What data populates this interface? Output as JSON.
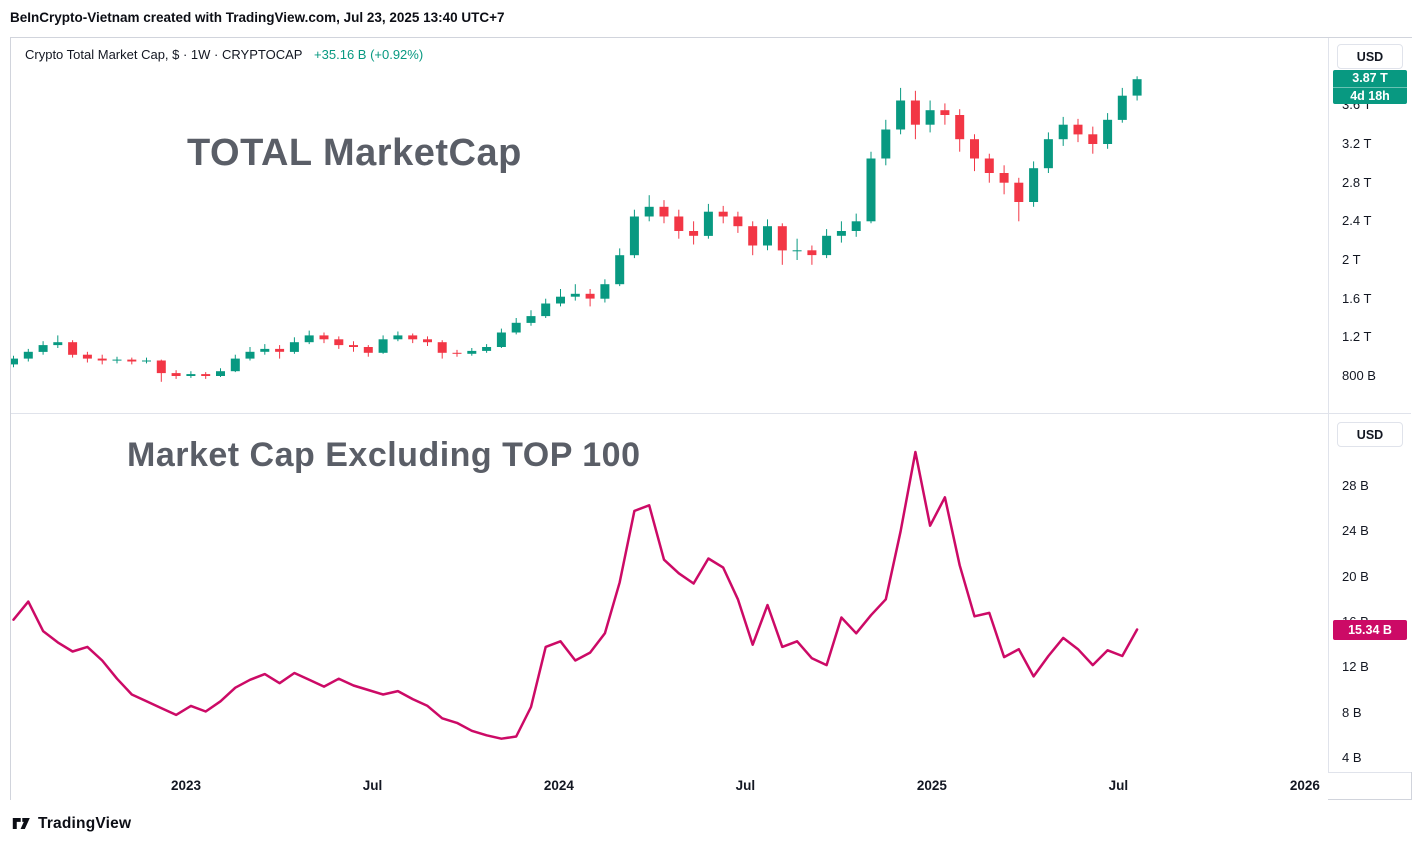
{
  "header": {
    "text": "BeInCrypto-Vietnam created with TradingView.com, Jul 23, 2025 13:40 UTC+7"
  },
  "footer": {
    "brand": "TradingView"
  },
  "colors": {
    "up": "#089981",
    "down": "#f23645",
    "line": "#cc0a66",
    "positive": "#089981",
    "text": "#131722",
    "border": "#e0e3eb",
    "watermark": "rgba(54,58,69,0.82)"
  },
  "panel1": {
    "legend": {
      "title": "Crypto Total Market Cap, $ · 1W · CRYPTOCAP",
      "change": "+35.16 B (+0.92%)"
    },
    "watermark": "TOTAL MarketCap",
    "currency_button": "USD",
    "price_badge": {
      "label": "3.87 T",
      "countdown": "4d 18h",
      "value": 3.87
    },
    "y_ticks": [
      {
        "value": 3.6,
        "label": "3.6 T"
      },
      {
        "value": 3.2,
        "label": "3.2 T"
      },
      {
        "value": 2.8,
        "label": "2.8 T"
      },
      {
        "value": 2.4,
        "label": "2.4 T"
      },
      {
        "value": 2.0,
        "label": "2 T"
      },
      {
        "value": 1.6,
        "label": "1.6 T"
      },
      {
        "value": 1.2,
        "label": "1.2 T"
      },
      {
        "value": 0.8,
        "label": "800 B"
      }
    ]
  },
  "panel2": {
    "watermark": "Market Cap Excluding TOP 100",
    "currency_button": "USD",
    "price_badge": {
      "label": "15.34 B",
      "value": 15.34
    },
    "y_ticks": [
      {
        "value": 28,
        "label": "28 B"
      },
      {
        "value": 24,
        "label": "24 B"
      },
      {
        "value": 20,
        "label": "20 B"
      },
      {
        "value": 16,
        "label": "16 B"
      },
      {
        "value": 12,
        "label": "12 B"
      },
      {
        "value": 8,
        "label": "8 B"
      },
      {
        "value": 4,
        "label": "4 B"
      }
    ]
  },
  "time_axis": {
    "labels": [
      {
        "label": "2023",
        "month": 6
      },
      {
        "label": "Jul",
        "month": 12
      },
      {
        "label": "2024",
        "month": 18
      },
      {
        "label": "Jul",
        "month": 24
      },
      {
        "label": "2025",
        "month": 30
      },
      {
        "label": "Jul",
        "month": 36
      },
      {
        "label": "2026",
        "month": 42
      }
    ]
  },
  "chart_data": [
    {
      "type": "candlestick",
      "title": "Crypto Total Market Cap, $ · 1W · CRYPTOCAP",
      "symbol": "CRYPTOCAP:TOTAL",
      "timeframe": "1W",
      "unit": "USD trillions",
      "x_axis": "months since Jul 2022, 2 candles per month (weekly series downsampled)",
      "ylim": [
        0.45,
        4.3
      ],
      "last_price": 3.87,
      "change_label": "+35.16 B (+0.92%)",
      "legend_position": "top-left",
      "grid": false,
      "candles_ohlc": [
        [
          0.92,
          1.01,
          0.89,
          0.98
        ],
        [
          0.98,
          1.08,
          0.95,
          1.05
        ],
        [
          1.05,
          1.16,
          1.02,
          1.12
        ],
        [
          1.12,
          1.22,
          1.09,
          1.15
        ],
        [
          1.15,
          1.17,
          0.99,
          1.02
        ],
        [
          1.02,
          1.05,
          0.94,
          0.98
        ],
        [
          0.98,
          1.02,
          0.92,
          0.96
        ],
        [
          0.96,
          1.0,
          0.93,
          0.97
        ],
        [
          0.97,
          0.99,
          0.92,
          0.95
        ],
        [
          0.95,
          0.99,
          0.93,
          0.96
        ],
        [
          0.96,
          0.97,
          0.74,
          0.83
        ],
        [
          0.83,
          0.86,
          0.77,
          0.8
        ],
        [
          0.8,
          0.85,
          0.78,
          0.82
        ],
        [
          0.82,
          0.84,
          0.77,
          0.8
        ],
        [
          0.8,
          0.88,
          0.79,
          0.85
        ],
        [
          0.85,
          1.02,
          0.84,
          0.98
        ],
        [
          0.98,
          1.1,
          0.96,
          1.05
        ],
        [
          1.05,
          1.13,
          1.02,
          1.08
        ],
        [
          1.08,
          1.12,
          0.98,
          1.05
        ],
        [
          1.05,
          1.2,
          1.03,
          1.15
        ],
        [
          1.15,
          1.27,
          1.13,
          1.22
        ],
        [
          1.22,
          1.25,
          1.14,
          1.18
        ],
        [
          1.18,
          1.21,
          1.08,
          1.12
        ],
        [
          1.12,
          1.16,
          1.05,
          1.1
        ],
        [
          1.1,
          1.12,
          1.0,
          1.04
        ],
        [
          1.04,
          1.22,
          1.03,
          1.18
        ],
        [
          1.18,
          1.26,
          1.16,
          1.22
        ],
        [
          1.22,
          1.24,
          1.14,
          1.18
        ],
        [
          1.18,
          1.21,
          1.11,
          1.15
        ],
        [
          1.15,
          1.17,
          0.98,
          1.04
        ],
        [
          1.04,
          1.07,
          1.0,
          1.03
        ],
        [
          1.03,
          1.09,
          1.01,
          1.06
        ],
        [
          1.06,
          1.13,
          1.04,
          1.1
        ],
        [
          1.1,
          1.29,
          1.09,
          1.25
        ],
        [
          1.25,
          1.4,
          1.23,
          1.35
        ],
        [
          1.35,
          1.48,
          1.32,
          1.42
        ],
        [
          1.42,
          1.6,
          1.4,
          1.55
        ],
        [
          1.55,
          1.7,
          1.52,
          1.62
        ],
        [
          1.62,
          1.75,
          1.58,
          1.65
        ],
        [
          1.65,
          1.7,
          1.52,
          1.6
        ],
        [
          1.6,
          1.8,
          1.56,
          1.75
        ],
        [
          1.75,
          2.12,
          1.73,
          2.05
        ],
        [
          2.05,
          2.52,
          2.02,
          2.45
        ],
        [
          2.45,
          2.67,
          2.4,
          2.55
        ],
        [
          2.55,
          2.62,
          2.38,
          2.45
        ],
        [
          2.45,
          2.52,
          2.22,
          2.3
        ],
        [
          2.3,
          2.4,
          2.16,
          2.25
        ],
        [
          2.25,
          2.58,
          2.22,
          2.5
        ],
        [
          2.5,
          2.56,
          2.38,
          2.45
        ],
        [
          2.45,
          2.5,
          2.28,
          2.35
        ],
        [
          2.35,
          2.4,
          2.05,
          2.15
        ],
        [
          2.15,
          2.42,
          2.1,
          2.35
        ],
        [
          2.35,
          2.38,
          1.95,
          2.1
        ],
        [
          2.1,
          2.22,
          2.0,
          2.1
        ],
        [
          2.1,
          2.15,
          1.95,
          2.05
        ],
        [
          2.05,
          2.32,
          2.02,
          2.25
        ],
        [
          2.25,
          2.4,
          2.18,
          2.3
        ],
        [
          2.3,
          2.48,
          2.24,
          2.4
        ],
        [
          2.4,
          3.12,
          2.38,
          3.05
        ],
        [
          3.05,
          3.45,
          2.98,
          3.35
        ],
        [
          3.35,
          3.78,
          3.3,
          3.65
        ],
        [
          3.65,
          3.75,
          3.25,
          3.4
        ],
        [
          3.4,
          3.65,
          3.32,
          3.55
        ],
        [
          3.55,
          3.62,
          3.4,
          3.5
        ],
        [
          3.5,
          3.56,
          3.12,
          3.25
        ],
        [
          3.25,
          3.3,
          2.92,
          3.05
        ],
        [
          3.05,
          3.1,
          2.8,
          2.9
        ],
        [
          2.9,
          2.98,
          2.68,
          2.8
        ],
        [
          2.8,
          2.85,
          2.4,
          2.6
        ],
        [
          2.6,
          3.02,
          2.55,
          2.95
        ],
        [
          2.95,
          3.32,
          2.9,
          3.25
        ],
        [
          3.25,
          3.48,
          3.18,
          3.4
        ],
        [
          3.4,
          3.46,
          3.22,
          3.3
        ],
        [
          3.3,
          3.38,
          3.1,
          3.2
        ],
        [
          3.2,
          3.52,
          3.15,
          3.45
        ],
        [
          3.45,
          3.78,
          3.42,
          3.7
        ],
        [
          3.7,
          3.9,
          3.65,
          3.87
        ]
      ]
    },
    {
      "type": "line",
      "title": "Market Cap Excluding TOP 100",
      "unit": "USD billions",
      "x_axis": "months since Jul 2022, 2 points per month (same x grid as candlestick panel)",
      "ylim": [
        3.5,
        33.5
      ],
      "last_value": 15.34,
      "grid": false,
      "values": [
        16.2,
        17.8,
        15.2,
        14.2,
        13.4,
        13.8,
        12.6,
        11.0,
        9.6,
        9.0,
        8.4,
        7.8,
        8.6,
        8.1,
        9.0,
        10.2,
        10.9,
        11.4,
        10.6,
        11.5,
        10.9,
        10.3,
        11.0,
        10.4,
        10.0,
        9.6,
        9.9,
        9.2,
        8.6,
        7.5,
        7.1,
        6.4,
        6.0,
        5.7,
        5.9,
        8.5,
        13.8,
        14.3,
        12.6,
        13.3,
        15.0,
        19.5,
        25.8,
        26.3,
        21.5,
        20.3,
        19.4,
        21.6,
        20.8,
        18.0,
        14.0,
        17.5,
        13.8,
        14.3,
        12.8,
        12.2,
        16.4,
        15.0,
        16.6,
        18.0,
        24.0,
        31.0,
        24.5,
        27.0,
        21.0,
        16.5,
        16.8,
        12.9,
        13.6,
        11.2,
        13.0,
        14.6,
        13.6,
        12.2,
        13.5,
        13.0,
        15.34
      ]
    }
  ]
}
